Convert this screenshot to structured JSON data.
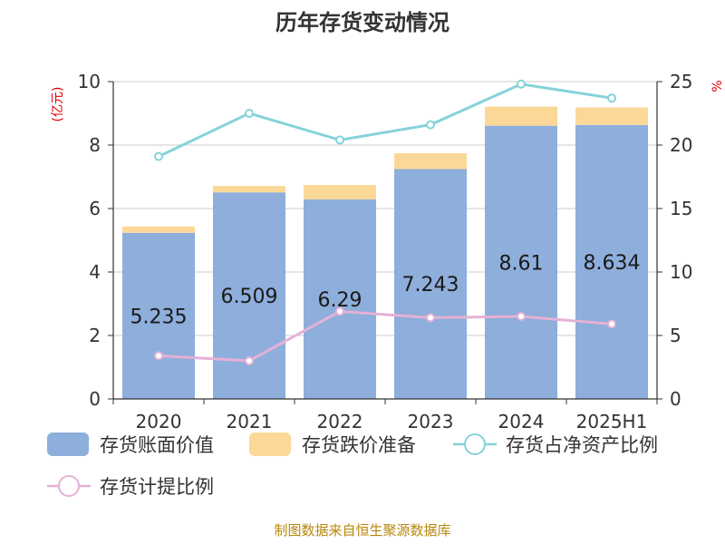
{
  "chart_data": {
    "type": "bar",
    "title": "历年存货变动情况",
    "categories": [
      "2020",
      "2021",
      "2022",
      "2023",
      "2024",
      "2025H1"
    ],
    "left_axis": {
      "unit": "(亿元)",
      "ylim": [
        0,
        10
      ],
      "ticks": [
        0,
        2,
        4,
        6,
        8,
        10
      ]
    },
    "right_axis": {
      "unit": "%",
      "ylim": [
        0,
        25
      ],
      "ticks": [
        0,
        5,
        10,
        15,
        20,
        25
      ]
    },
    "series": [
      {
        "name": "存货账面价值",
        "kind": "bar-stacked",
        "axis": "left",
        "color": "#8eaedb",
        "values": [
          5.235,
          6.509,
          6.29,
          7.243,
          8.61,
          8.634
        ],
        "labels": [
          "5.235",
          "6.509",
          "6.29",
          "7.243",
          "8.61",
          "8.634"
        ]
      },
      {
        "name": "存货跌价准备",
        "kind": "bar-stacked",
        "axis": "left",
        "color": "#fcd898",
        "values": [
          0.2,
          0.2,
          0.45,
          0.5,
          0.6,
          0.55
        ]
      },
      {
        "name": "存货占净资产比例",
        "kind": "line",
        "axis": "right",
        "color": "#85d3d9",
        "values": [
          19.1,
          22.5,
          20.4,
          21.6,
          24.8,
          23.7
        ]
      },
      {
        "name": "存货计提比例",
        "kind": "line",
        "axis": "right",
        "color": "#e5b1d6",
        "values": [
          3.4,
          3.0,
          6.9,
          6.4,
          6.5,
          5.9
        ]
      }
    ],
    "grid": true,
    "legend_position": "bottom"
  },
  "source": "制图数据来自恒生聚源数据库"
}
